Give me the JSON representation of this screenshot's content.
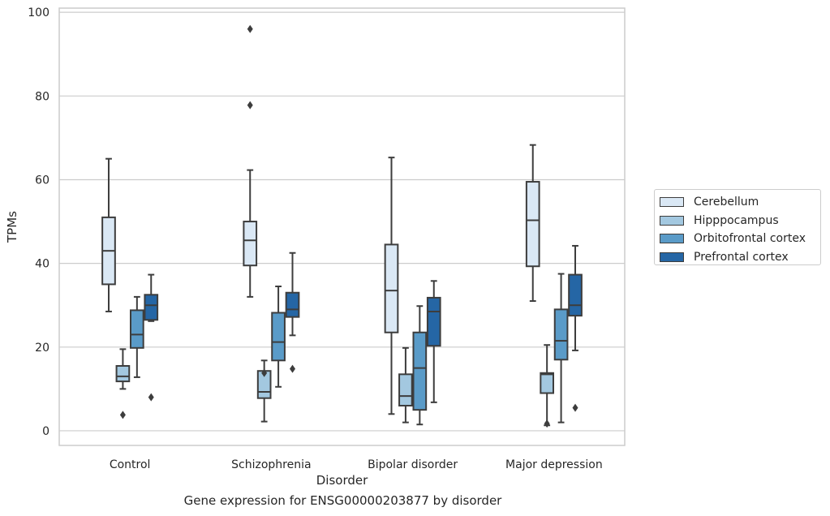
{
  "caption": "Gene expression for ENSG00000203877 by disorder",
  "chart_data": {
    "type": "box",
    "xlabel": "Disorder",
    "ylabel": "TPMs",
    "ylim": [
      -3.5,
      101
    ],
    "yticks": [
      0,
      20,
      40,
      60,
      80,
      100
    ],
    "grid": "horizontal",
    "legend_position": "right",
    "categories": [
      "Control",
      "Schizophrenia",
      "Bipolar disorder",
      "Major depression"
    ],
    "series": [
      {
        "name": "Cerebellum",
        "color": "#dae8f5",
        "boxes": [
          {
            "whislo": 28.5,
            "q1": 35,
            "median": 43,
            "q3": 51,
            "whishi": 65,
            "fliers": []
          },
          {
            "whislo": 32,
            "q1": 39.5,
            "median": 45.5,
            "q3": 50,
            "whishi": 62.3,
            "fliers": [
              77.8,
              96
            ]
          },
          {
            "whislo": 4,
            "q1": 23.5,
            "median": 33.5,
            "q3": 44.5,
            "whishi": 65.3,
            "fliers": []
          },
          {
            "whislo": 31,
            "q1": 39.3,
            "median": 50.3,
            "q3": 59.5,
            "whishi": 68.3,
            "fliers": []
          }
        ]
      },
      {
        "name": "Hipppocampus",
        "color": "#a3c8e0",
        "boxes": [
          {
            "whislo": 10,
            "q1": 11.8,
            "median": 13,
            "q3": 15.5,
            "whishi": 19.5,
            "fliers": [
              3.8
            ]
          },
          {
            "whislo": 2.2,
            "q1": 7.8,
            "median": 9.3,
            "q3": 14.3,
            "whishi": 16.8,
            "fliers": [
              13.8
            ]
          },
          {
            "whislo": 2,
            "q1": 6,
            "median": 8.3,
            "q3": 13.5,
            "whishi": 19.8,
            "fliers": []
          },
          {
            "whislo": 1.3,
            "q1": 9,
            "median": 13.5,
            "q3": 13.8,
            "whishi": 20.5,
            "fliers": [
              1.7
            ]
          }
        ]
      },
      {
        "name": "Orbitofrontal cortex",
        "color": "#5a9bc8",
        "boxes": [
          {
            "whislo": 12.8,
            "q1": 19.8,
            "median": 23,
            "q3": 28.8,
            "whishi": 32,
            "fliers": []
          },
          {
            "whislo": 10.5,
            "q1": 16.8,
            "median": 21.2,
            "q3": 28.2,
            "whishi": 34.5,
            "fliers": []
          },
          {
            "whislo": 1.5,
            "q1": 5,
            "median": 15,
            "q3": 23.5,
            "whishi": 29.8,
            "fliers": []
          },
          {
            "whislo": 2,
            "q1": 17,
            "median": 21.5,
            "q3": 29,
            "whishi": 37.5,
            "fliers": []
          }
        ]
      },
      {
        "name": "Prefrontal cortex",
        "color": "#2566a5",
        "boxes": [
          {
            "whislo": 26.2,
            "q1": 26.5,
            "median": 30,
            "q3": 32.5,
            "whishi": 37.3,
            "fliers": [
              8
            ]
          },
          {
            "whislo": 22.8,
            "q1": 27.2,
            "median": 29,
            "q3": 33,
            "whishi": 42.5,
            "fliers": [
              14.8
            ]
          },
          {
            "whislo": 6.8,
            "q1": 20.3,
            "median": 28.5,
            "q3": 31.8,
            "whishi": 35.8,
            "fliers": []
          },
          {
            "whislo": 19.2,
            "q1": 27.5,
            "median": 30,
            "q3": 37.3,
            "whishi": 44.2,
            "fliers": [
              5.5
            ]
          }
        ]
      }
    ]
  }
}
